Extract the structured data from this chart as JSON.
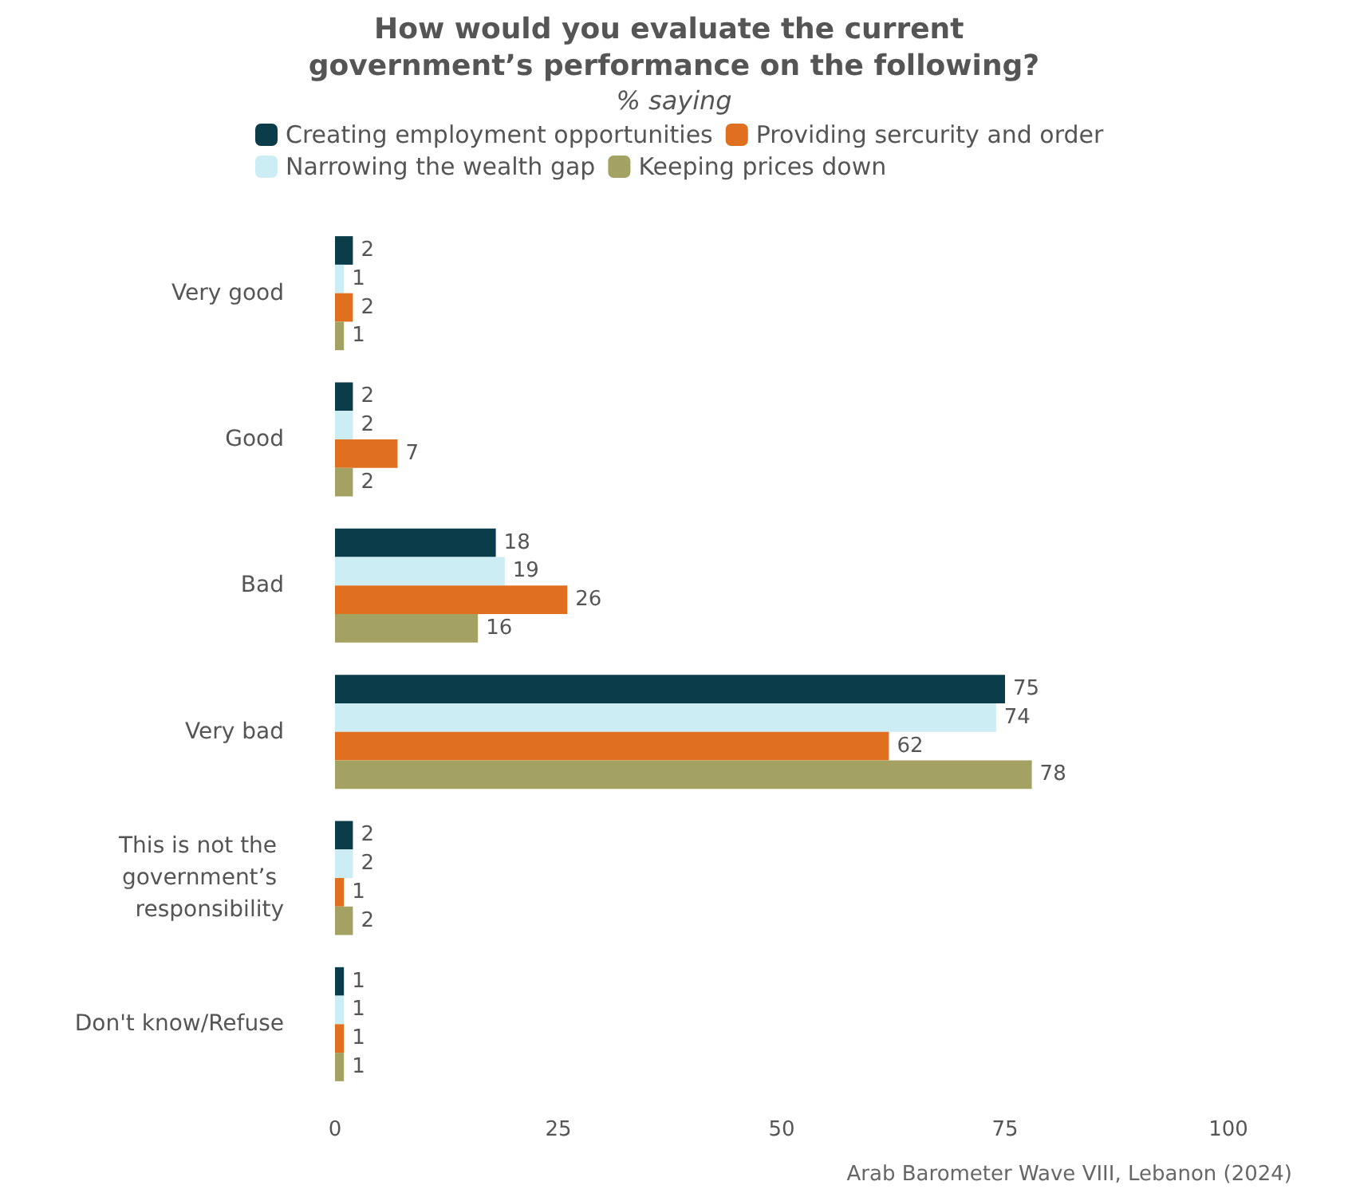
{
  "chart_data": {
    "type": "bar",
    "orientation": "horizontal",
    "title": "How would you evaluate the current government’s performance on the following?",
    "subtitle": "% saying",
    "categories": [
      "Very good",
      "Good",
      "Bad",
      "Very bad",
      "This is not the government’s responsibility",
      "Don't know/Refuse"
    ],
    "series": [
      {
        "name": "Creating employment opportunities",
        "color": "#0b3c4a",
        "values": [
          2,
          2,
          18,
          75,
          2,
          1
        ]
      },
      {
        "name": "Narrowing the wealth gap",
        "color": "#cdedf5",
        "values": [
          1,
          2,
          19,
          74,
          2,
          1
        ]
      },
      {
        "name": "Providing sercurity and order",
        "color": "#e06f1f",
        "values": [
          2,
          7,
          26,
          62,
          1,
          1
        ]
      },
      {
        "name": "Keeping prices down",
        "color": "#a4a263",
        "values": [
          1,
          2,
          16,
          78,
          2,
          1
        ]
      }
    ],
    "xlim": [
      0,
      100
    ],
    "xticks": [
      0,
      25,
      50,
      75,
      100
    ],
    "grid": false,
    "legend": "top",
    "data_labels": true,
    "annotations": [
      "Arab Barometer Wave VIII, Lebanon (2024)"
    ]
  }
}
